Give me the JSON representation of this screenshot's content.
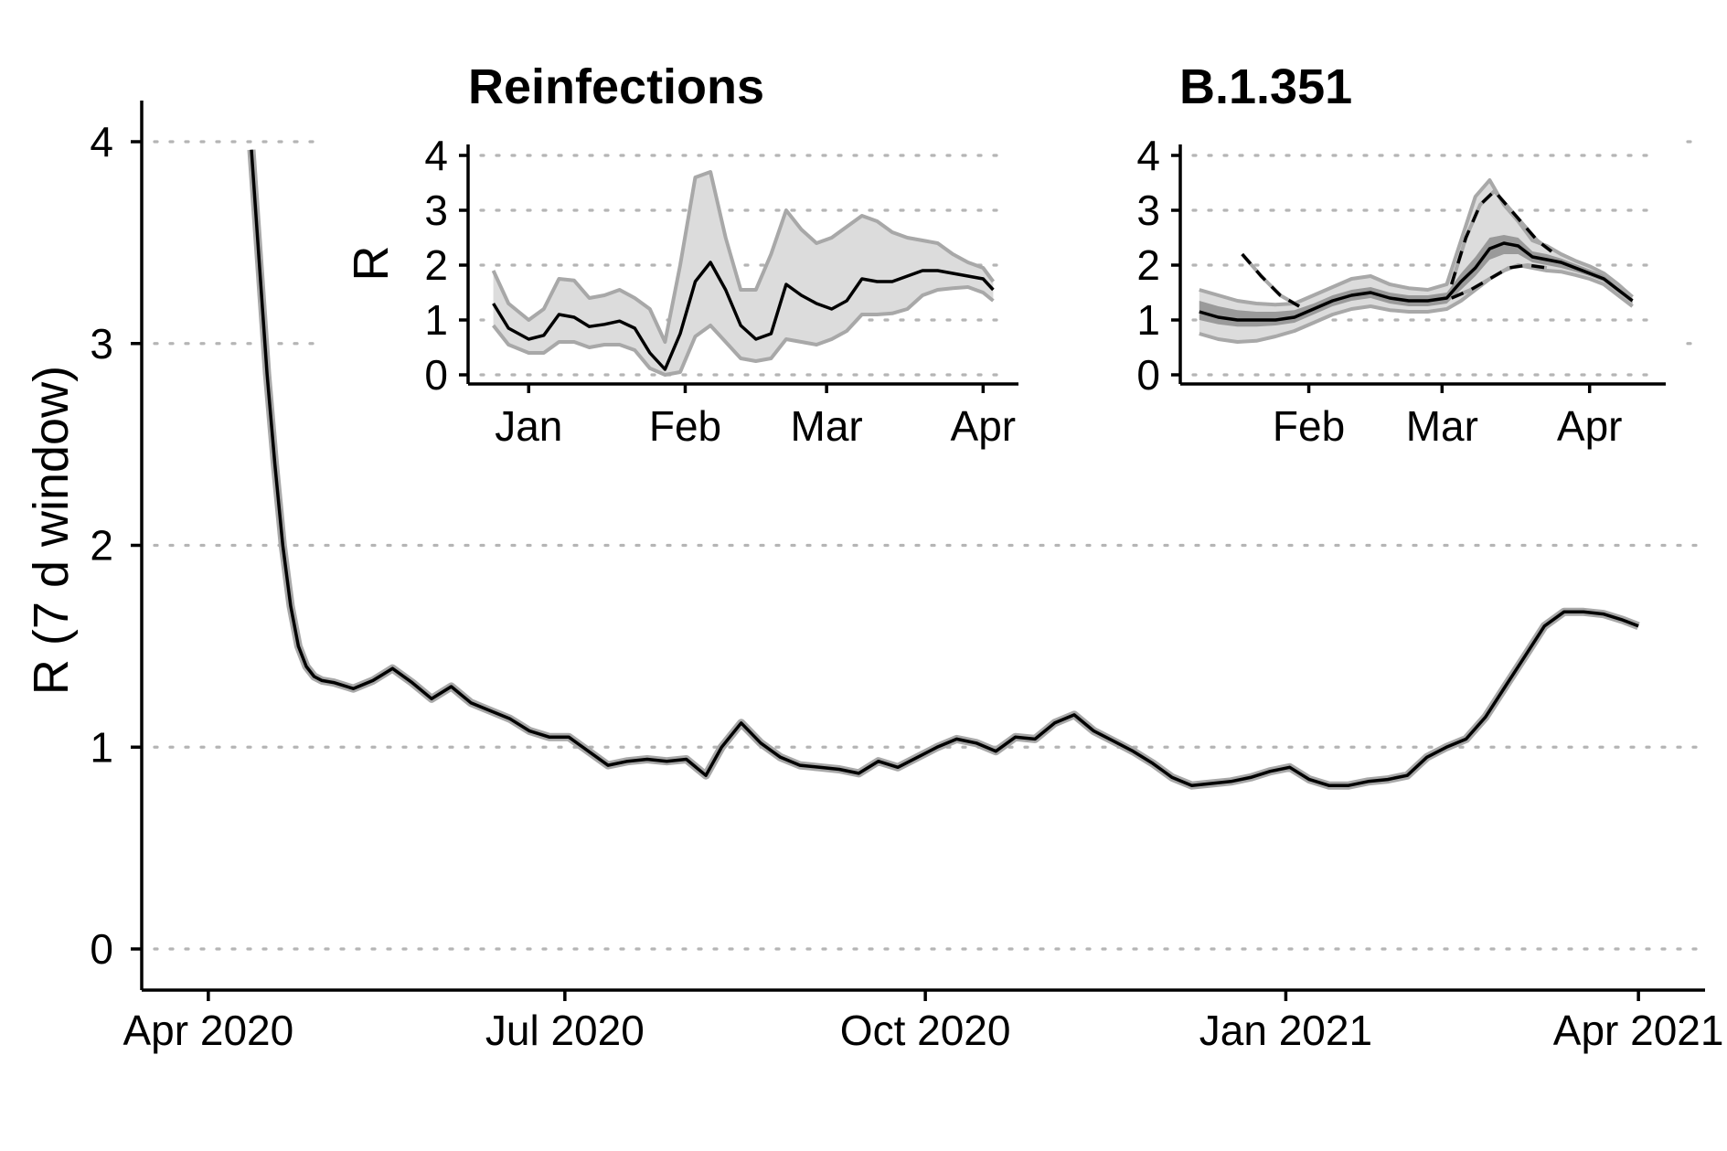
{
  "chart_data": [
    {
      "id": "main",
      "type": "line",
      "title": "",
      "xlabel": "",
      "ylabel": "R (7 d window)",
      "ylim": [
        0,
        4
      ],
      "grid": "horizontal-dotted",
      "x_ticks": [
        "Apr 2020",
        "Jul 2020",
        "Oct 2020",
        "Jan 2021",
        "Apr 2021"
      ],
      "x_tick_dates": [
        "2020-04-01",
        "2020-07-01",
        "2020-10-01",
        "2021-01-01",
        "2021-04-01"
      ],
      "y_ticks": [
        0,
        1,
        2,
        3,
        4
      ],
      "xlim": [
        "2020-03-15",
        "2021-04-18"
      ],
      "series": [
        {
          "x": [
            "2020-04-12",
            "2020-04-14",
            "2020-04-16",
            "2020-04-18",
            "2020-04-20",
            "2020-04-22",
            "2020-04-24",
            "2020-04-26",
            "2020-04-28",
            "2020-04-30",
            "2020-05-03",
            "2020-05-08",
            "2020-05-13",
            "2020-05-18",
            "2020-05-23",
            "2020-05-28",
            "2020-06-02",
            "2020-06-07",
            "2020-06-12",
            "2020-06-17",
            "2020-06-22",
            "2020-06-27",
            "2020-07-02",
            "2020-07-07",
            "2020-07-12",
            "2020-07-17",
            "2020-07-22",
            "2020-07-27",
            "2020-08-01",
            "2020-08-06",
            "2020-08-10",
            "2020-08-15",
            "2020-08-20",
            "2020-08-25",
            "2020-08-30",
            "2020-09-04",
            "2020-09-09",
            "2020-09-14",
            "2020-09-19",
            "2020-09-24",
            "2020-09-29",
            "2020-10-04",
            "2020-10-09",
            "2020-10-14",
            "2020-10-19",
            "2020-10-24",
            "2020-10-29",
            "2020-11-03",
            "2020-11-08",
            "2020-11-13",
            "2020-11-18",
            "2020-11-23",
            "2020-11-28",
            "2020-12-03",
            "2020-12-08",
            "2020-12-13",
            "2020-12-18",
            "2020-12-23",
            "2020-12-28",
            "2021-01-02",
            "2021-01-07",
            "2021-01-12",
            "2021-01-17",
            "2021-01-22",
            "2021-01-27",
            "2021-02-01",
            "2021-02-06",
            "2021-02-11",
            "2021-02-16",
            "2021-02-21",
            "2021-02-26",
            "2021-03-03",
            "2021-03-08",
            "2021-03-13",
            "2021-03-18",
            "2021-03-23",
            "2021-03-28",
            "2021-04-01"
          ],
          "y": [
            3.96,
            3.4,
            2.85,
            2.4,
            2.0,
            1.7,
            1.5,
            1.4,
            1.35,
            1.33,
            1.32,
            1.29,
            1.33,
            1.39,
            1.32,
            1.24,
            1.3,
            1.22,
            1.18,
            1.14,
            1.08,
            1.05,
            1.05,
            0.98,
            0.91,
            0.93,
            0.94,
            0.93,
            0.94,
            0.86,
            1.0,
            1.12,
            1.02,
            0.95,
            0.91,
            0.9,
            0.89,
            0.87,
            0.93,
            0.9,
            0.95,
            1.0,
            1.04,
            1.02,
            0.98,
            1.05,
            1.04,
            1.12,
            1.16,
            1.08,
            1.03,
            0.98,
            0.92,
            0.85,
            0.81,
            0.82,
            0.83,
            0.85,
            0.88,
            0.9,
            0.84,
            0.81,
            0.81,
            0.83,
            0.84,
            0.86,
            0.95,
            1.0,
            1.04,
            1.15,
            1.3,
            1.45,
            1.6,
            1.67,
            1.67,
            1.66,
            1.63,
            1.6
          ]
        }
      ]
    },
    {
      "id": "inset-reinfections",
      "type": "area",
      "title": "Reinfections",
      "xlabel": "",
      "ylabel": "R",
      "ylim": [
        0,
        4
      ],
      "grid": "horizontal-dotted",
      "x_ticks": [
        "Jan",
        "Feb",
        "Mar",
        "Apr"
      ],
      "x_tick_dates": [
        "2021-01-01",
        "2021-02-01",
        "2021-03-01",
        "2021-04-01"
      ],
      "y_ticks": [
        0,
        1,
        2,
        3,
        4
      ],
      "xlim": [
        "2020-12-20",
        "2021-04-08"
      ],
      "series": [
        {
          "x": [
            "2020-12-25",
            "2020-12-28",
            "2021-01-01",
            "2021-01-04",
            "2021-01-07",
            "2021-01-10",
            "2021-01-13",
            "2021-01-16",
            "2021-01-19",
            "2021-01-22",
            "2021-01-25",
            "2021-01-28",
            "2021-01-31",
            "2021-02-03",
            "2021-02-06",
            "2021-02-09",
            "2021-02-12",
            "2021-02-15",
            "2021-02-18",
            "2021-02-21",
            "2021-02-24",
            "2021-02-27",
            "2021-03-02",
            "2021-03-05",
            "2021-03-08",
            "2021-03-11",
            "2021-03-14",
            "2021-03-17",
            "2021-03-20",
            "2021-03-23",
            "2021-03-26",
            "2021-03-29",
            "2021-04-01",
            "2021-04-03"
          ],
          "y": [
            1.3,
            0.85,
            0.65,
            0.72,
            1.1,
            1.05,
            0.88,
            0.92,
            0.98,
            0.85,
            0.4,
            0.1,
            0.75,
            1.7,
            2.05,
            1.55,
            0.9,
            0.65,
            0.75,
            1.65,
            1.45,
            1.3,
            1.2,
            1.35,
            1.75,
            1.7,
            1.7,
            1.8,
            1.9,
            1.9,
            1.85,
            1.8,
            1.75,
            1.55
          ],
          "lower": [
            0.9,
            0.55,
            0.4,
            0.4,
            0.6,
            0.6,
            0.5,
            0.55,
            0.55,
            0.45,
            0.12,
            0.0,
            0.05,
            0.7,
            0.9,
            0.6,
            0.3,
            0.25,
            0.3,
            0.65,
            0.6,
            0.55,
            0.65,
            0.8,
            1.1,
            1.1,
            1.12,
            1.2,
            1.45,
            1.55,
            1.58,
            1.6,
            1.5,
            1.35
          ],
          "upper": [
            1.9,
            1.3,
            1.0,
            1.2,
            1.75,
            1.72,
            1.4,
            1.45,
            1.55,
            1.4,
            1.2,
            0.6,
            2.0,
            3.6,
            3.7,
            2.5,
            1.55,
            1.55,
            2.2,
            3.0,
            2.65,
            2.4,
            2.5,
            2.7,
            2.9,
            2.8,
            2.6,
            2.5,
            2.45,
            2.4,
            2.2,
            2.05,
            1.95,
            1.7
          ]
        }
      ]
    },
    {
      "id": "inset-b1351",
      "type": "area",
      "title": "B.1.351",
      "xlabel": "",
      "ylabel": "",
      "ylim": [
        0,
        4
      ],
      "grid": "horizontal-dotted",
      "x_ticks": [
        "Feb",
        "Mar",
        "Apr"
      ],
      "x_tick_dates": [
        "2021-02-01",
        "2021-03-01",
        "2021-04-01"
      ],
      "y_ticks": [
        0,
        1,
        2,
        3,
        4
      ],
      "xlim": [
        "2021-01-05",
        "2021-04-17"
      ],
      "series": [
        {
          "style": "solid",
          "x": [
            "2021-01-09",
            "2021-01-13",
            "2021-01-17",
            "2021-01-21",
            "2021-01-25",
            "2021-01-29",
            "2021-02-02",
            "2021-02-06",
            "2021-02-10",
            "2021-02-14",
            "2021-02-18",
            "2021-02-22",
            "2021-02-26",
            "2021-03-02",
            "2021-03-05",
            "2021-03-08",
            "2021-03-11",
            "2021-03-14",
            "2021-03-17",
            "2021-03-20",
            "2021-03-23",
            "2021-03-26",
            "2021-03-29",
            "2021-04-01",
            "2021-04-04",
            "2021-04-07",
            "2021-04-10"
          ],
          "y": [
            1.15,
            1.05,
            1.0,
            1.0,
            1.0,
            1.05,
            1.2,
            1.35,
            1.45,
            1.5,
            1.4,
            1.35,
            1.35,
            1.4,
            1.7,
            1.95,
            2.3,
            2.4,
            2.35,
            2.15,
            2.1,
            2.05,
            1.95,
            1.85,
            1.75,
            1.55,
            1.35
          ],
          "inner_lower": [
            1.0,
            0.92,
            0.88,
            0.88,
            0.9,
            0.95,
            1.1,
            1.25,
            1.35,
            1.4,
            1.3,
            1.25,
            1.25,
            1.3,
            1.55,
            1.8,
            2.1,
            2.2,
            2.2,
            2.05,
            2.0,
            1.95,
            1.88,
            1.8,
            1.7,
            1.5,
            1.3
          ],
          "inner_upper": [
            1.35,
            1.25,
            1.18,
            1.15,
            1.15,
            1.18,
            1.3,
            1.45,
            1.55,
            1.6,
            1.5,
            1.45,
            1.45,
            1.5,
            1.85,
            2.15,
            2.5,
            2.55,
            2.5,
            2.25,
            2.2,
            2.12,
            2.02,
            1.92,
            1.82,
            1.6,
            1.4
          ],
          "outer_lower": [
            0.75,
            0.65,
            0.6,
            0.62,
            0.7,
            0.8,
            0.95,
            1.1,
            1.2,
            1.25,
            1.18,
            1.15,
            1.15,
            1.2,
            1.35,
            1.55,
            1.75,
            1.9,
            2.0,
            1.95,
            1.9,
            1.88,
            1.82,
            1.75,
            1.65,
            1.45,
            1.25
          ],
          "outer_upper": [
            1.55,
            1.45,
            1.35,
            1.3,
            1.28,
            1.3,
            1.45,
            1.6,
            1.75,
            1.8,
            1.65,
            1.58,
            1.55,
            1.65,
            2.45,
            3.25,
            3.55,
            3.1,
            2.8,
            2.45,
            2.35,
            2.2,
            2.08,
            1.98,
            1.85,
            1.65,
            1.42
          ]
        },
        {
          "style": "dashed",
          "x": [
            "2021-01-18",
            "2021-01-22",
            "2021-01-26",
            "2021-01-30"
          ],
          "y": [
            2.2,
            1.8,
            1.45,
            1.25
          ]
        },
        {
          "style": "dashed",
          "x": [
            "2021-03-03",
            "2021-03-06",
            "2021-03-09",
            "2021-03-12",
            "2021-03-15",
            "2021-03-18",
            "2021-03-21",
            "2021-03-24"
          ],
          "y": [
            1.65,
            2.5,
            3.1,
            3.35,
            3.05,
            2.75,
            2.45,
            2.25
          ]
        },
        {
          "style": "dashed",
          "x": [
            "2021-03-03",
            "2021-03-07",
            "2021-03-11",
            "2021-03-15",
            "2021-03-19",
            "2021-03-23"
          ],
          "y": [
            1.4,
            1.55,
            1.75,
            1.95,
            2.0,
            1.95
          ]
        }
      ]
    }
  ]
}
